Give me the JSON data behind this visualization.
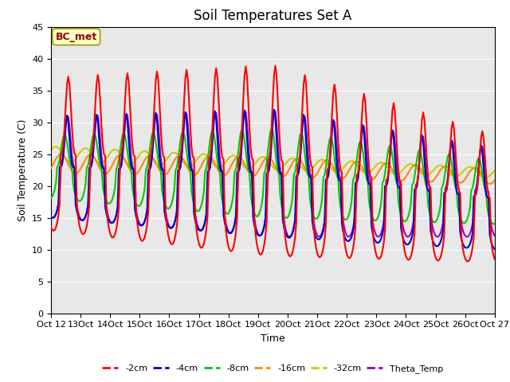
{
  "title": "Soil Temperatures Set A",
  "xlabel": "Time",
  "ylabel": "Soil Temperature (C)",
  "ylim": [
    0,
    45
  ],
  "xlim": [
    0,
    360
  ],
  "annotation_text": "BC_met",
  "annotation_bg": "#ffffcc",
  "annotation_border": "#999900",
  "annotation_text_color": "#990000",
  "plot_bg": "#e8e8e8",
  "series": {
    "-2cm": {
      "color": "#ff0000",
      "lw": 1.5
    },
    "-4cm": {
      "color": "#0000cc",
      "lw": 1.5
    },
    "-8cm": {
      "color": "#00cc00",
      "lw": 1.5
    },
    "-16cm": {
      "color": "#ff8800",
      "lw": 1.5
    },
    "-32cm": {
      "color": "#cccc00",
      "lw": 1.5
    },
    "Theta_Temp": {
      "color": "#9900cc",
      "lw": 1.5
    }
  },
  "x_tick_labels": [
    "Oct 12",
    "13Oct",
    "14Oct",
    "15Oct",
    "16Oct",
    "17Oct",
    "18Oct",
    "19Oct",
    "20Oct",
    "21Oct",
    "22Oct",
    "23Oct",
    "24Oct",
    "25Oct",
    "26Oct",
    "Oct 27"
  ],
  "x_tick_positions": [
    0,
    24,
    48,
    72,
    96,
    120,
    144,
    168,
    192,
    216,
    240,
    264,
    288,
    312,
    336,
    360
  ],
  "yticks": [
    0,
    5,
    10,
    15,
    20,
    25,
    30,
    35,
    40,
    45
  ]
}
